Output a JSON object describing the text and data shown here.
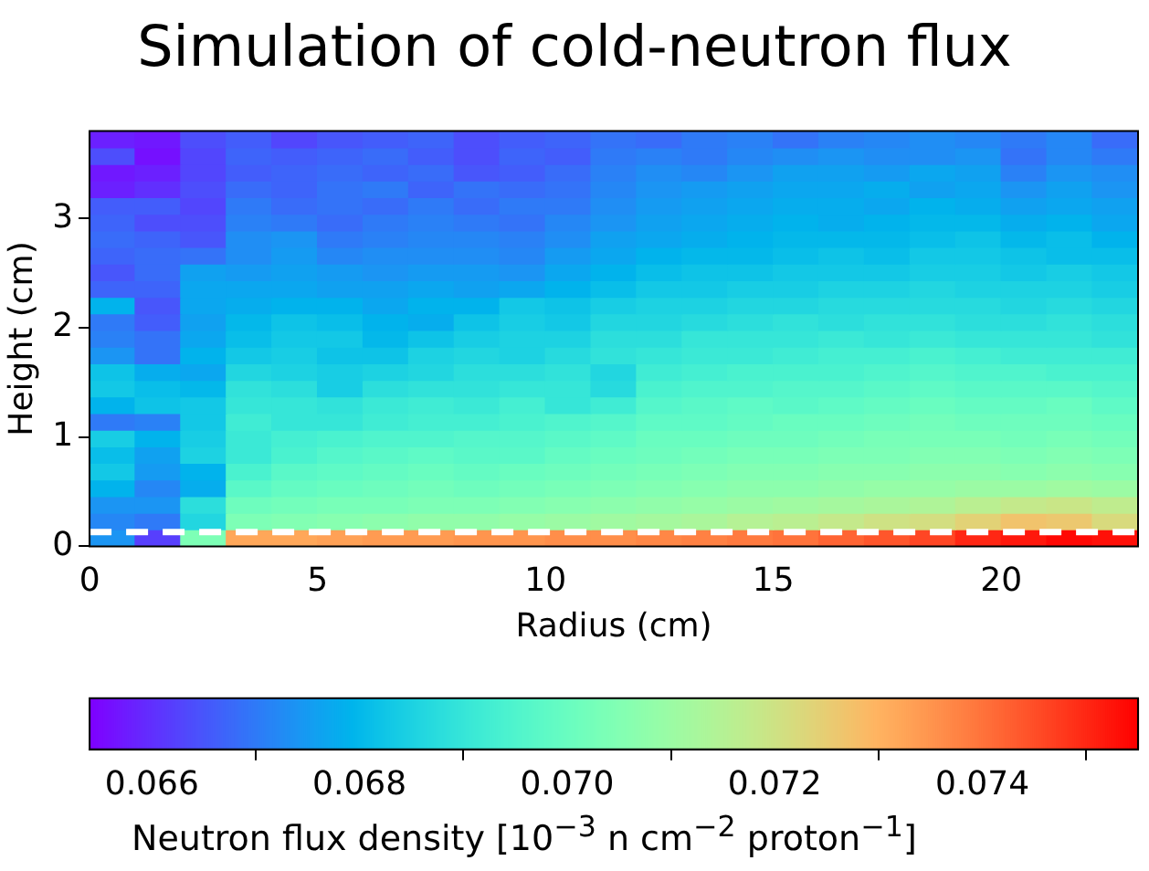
{
  "chart_data": {
    "type": "heatmap",
    "title": "Simulation of cold-neutron flux",
    "xlabel": "Radius (cm)",
    "ylabel": "Height (cm)",
    "clabel": "Neutron flux density [10$^{−3}$ n cm$^{−2}$ proton$^{−1}$]",
    "x": [
      0.5,
      1.5,
      2.5,
      3.5,
      4.5,
      5.5,
      6.5,
      7.5,
      8.5,
      9.5,
      10.5,
      11.5,
      12.5,
      13.5,
      14.5,
      15.5,
      16.5,
      17.5,
      18.5,
      19.5,
      20.5,
      21.5,
      22.5
    ],
    "y": [
      3.724,
      3.572,
      3.42,
      3.268,
      3.116,
      2.964,
      2.812,
      2.66,
      2.508,
      2.356,
      2.204,
      2.052,
      1.9,
      1.748,
      1.596,
      1.444,
      1.292,
      1.14,
      0.988,
      0.836,
      0.684,
      0.532,
      0.38,
      0.228,
      0.076
    ],
    "xlim": [
      0,
      23
    ],
    "xticks": [
      0,
      5,
      10,
      15,
      20
    ],
    "ylim": [
      0,
      3.8
    ],
    "yticks": [
      0,
      1,
      2,
      3
    ],
    "clim": [
      0.0654,
      0.0755
    ],
    "cticks": [
      0.066,
      0.068,
      {
        "value": 0.07,
        "label": "0.070"
      },
      0.072,
      0.074
    ],
    "ref_lines": [
      {
        "axis": "y",
        "value": 0.13,
        "color": "#ffffff",
        "line_style": "dashed"
      }
    ],
    "cells": [
      [
        0.0658,
        0.0657,
        0.0664,
        0.0666,
        0.0663,
        0.0665,
        0.0666,
        0.0667,
        0.0664,
        0.0666,
        0.0667,
        0.0669,
        0.0668,
        0.067,
        0.0671,
        0.0669,
        0.0671,
        0.0672,
        0.0673,
        0.0672,
        0.067,
        0.0672,
        0.0668
      ],
      [
        0.0664,
        0.0656,
        0.0663,
        0.0667,
        0.0666,
        0.0667,
        0.0668,
        0.0666,
        0.0664,
        0.0667,
        0.0666,
        0.067,
        0.0671,
        0.067,
        0.0672,
        0.0673,
        0.0674,
        0.0673,
        0.0673,
        0.0674,
        0.0669,
        0.0672,
        0.067
      ],
      [
        0.0657,
        0.0658,
        0.0663,
        0.0666,
        0.0667,
        0.0668,
        0.0667,
        0.0668,
        0.0665,
        0.0666,
        0.0668,
        0.0671,
        0.0673,
        0.0672,
        0.0674,
        0.0676,
        0.0676,
        0.0675,
        0.0677,
        0.0676,
        0.0671,
        0.0674,
        0.0673
      ],
      [
        0.0658,
        0.066,
        0.0664,
        0.0668,
        0.0667,
        0.0669,
        0.067,
        0.0667,
        0.0669,
        0.0668,
        0.0669,
        0.0672,
        0.0674,
        0.0675,
        0.0676,
        0.0677,
        0.0677,
        0.0678,
        0.0676,
        0.0677,
        0.0674,
        0.0676,
        0.0674
      ],
      [
        0.0666,
        0.0666,
        0.0663,
        0.067,
        0.0668,
        0.0669,
        0.0668,
        0.067,
        0.0668,
        0.067,
        0.067,
        0.0673,
        0.0675,
        0.0676,
        0.0677,
        0.0678,
        0.0678,
        0.0677,
        0.0679,
        0.0678,
        0.0676,
        0.0677,
        0.0676
      ],
      [
        0.0667,
        0.0664,
        0.0664,
        0.0671,
        0.067,
        0.0668,
        0.067,
        0.0671,
        0.067,
        0.0669,
        0.0672,
        0.0674,
        0.0676,
        0.0677,
        0.0678,
        0.0679,
        0.0678,
        0.0679,
        0.068,
        0.068,
        0.0678,
        0.0679,
        0.0677
      ],
      [
        0.0668,
        0.0667,
        0.0665,
        0.0673,
        0.0674,
        0.067,
        0.0671,
        0.0672,
        0.0672,
        0.0671,
        0.0673,
        0.0676,
        0.0677,
        0.0678,
        0.0679,
        0.068,
        0.068,
        0.068,
        0.0681,
        0.0682,
        0.068,
        0.0681,
        0.0679
      ],
      [
        0.0667,
        0.0668,
        0.0669,
        0.0673,
        0.0675,
        0.0672,
        0.0673,
        0.0673,
        0.0673,
        0.0672,
        0.0675,
        0.0677,
        0.0679,
        0.068,
        0.068,
        0.0681,
        0.0682,
        0.0681,
        0.0683,
        0.0683,
        0.0682,
        0.0681,
        0.0681
      ],
      [
        0.0665,
        0.0668,
        0.0676,
        0.0675,
        0.0676,
        0.0675,
        0.0674,
        0.0675,
        0.0675,
        0.0674,
        0.0677,
        0.0679,
        0.0681,
        0.0682,
        0.0682,
        0.0683,
        0.0683,
        0.0683,
        0.0684,
        0.0684,
        0.0683,
        0.0684,
        0.0683
      ],
      [
        0.0667,
        0.0667,
        0.0677,
        0.0677,
        0.0677,
        0.0676,
        0.0676,
        0.0677,
        0.0676,
        0.0677,
        0.0679,
        0.0681,
        0.0683,
        0.0683,
        0.0684,
        0.0684,
        0.0685,
        0.0685,
        0.0686,
        0.0685,
        0.0685,
        0.0685,
        0.0684
      ],
      [
        0.0679,
        0.0665,
        0.0677,
        0.0678,
        0.0679,
        0.0679,
        0.0677,
        0.0679,
        0.0679,
        0.0683,
        0.0682,
        0.0684,
        0.0685,
        0.0685,
        0.0686,
        0.0686,
        0.0687,
        0.0687,
        0.0687,
        0.0687,
        0.0686,
        0.0687,
        0.0686
      ],
      [
        0.067,
        0.0666,
        0.0676,
        0.068,
        0.0682,
        0.0681,
        0.0679,
        0.0678,
        0.0682,
        0.0684,
        0.0683,
        0.0686,
        0.0686,
        0.0687,
        0.0688,
        0.0689,
        0.0688,
        0.0689,
        0.0689,
        0.0688,
        0.0688,
        0.0689,
        0.0688
      ],
      [
        0.0671,
        0.0669,
        0.0677,
        0.0681,
        0.0683,
        0.0683,
        0.068,
        0.0682,
        0.0684,
        0.0685,
        0.0685,
        0.0688,
        0.0688,
        0.069,
        0.069,
        0.069,
        0.0691,
        0.069,
        0.0691,
        0.069,
        0.069,
        0.069,
        0.0689
      ],
      [
        0.0674,
        0.0669,
        0.0679,
        0.0683,
        0.0684,
        0.0682,
        0.0682,
        0.0685,
        0.0686,
        0.0685,
        0.0687,
        0.0689,
        0.069,
        0.0691,
        0.0691,
        0.0692,
        0.0693,
        0.0693,
        0.0694,
        0.0693,
        0.0692,
        0.0692,
        0.0692
      ],
      [
        0.0682,
        0.0678,
        0.0677,
        0.0686,
        0.0685,
        0.0684,
        0.0685,
        0.0686,
        0.0688,
        0.0688,
        0.0689,
        0.0686,
        0.0692,
        0.0693,
        0.0694,
        0.0694,
        0.0694,
        0.0695,
        0.0696,
        0.0695,
        0.0695,
        0.0694,
        0.0694
      ],
      [
        0.0683,
        0.0681,
        0.068,
        0.0689,
        0.0688,
        0.0684,
        0.0688,
        0.0689,
        0.0689,
        0.069,
        0.069,
        0.0687,
        0.0694,
        0.0695,
        0.0695,
        0.0696,
        0.0696,
        0.0697,
        0.0698,
        0.0697,
        0.0697,
        0.0697,
        0.0696
      ],
      [
        0.0679,
        0.0682,
        0.0683,
        0.069,
        0.069,
        0.0689,
        0.0691,
        0.0692,
        0.0691,
        0.0693,
        0.069,
        0.0692,
        0.0696,
        0.0697,
        0.0698,
        0.0697,
        0.0698,
        0.0699,
        0.07,
        0.0699,
        0.0699,
        0.07,
        0.0698
      ],
      [
        0.067,
        0.0671,
        0.0683,
        0.0692,
        0.069,
        0.069,
        0.0692,
        0.0693,
        0.0693,
        0.0694,
        0.0695,
        0.0696,
        0.0698,
        0.0698,
        0.0699,
        0.07,
        0.07,
        0.0701,
        0.0702,
        0.0701,
        0.0701,
        0.0701,
        0.07
      ],
      [
        0.0684,
        0.0679,
        0.0684,
        0.0691,
        0.0693,
        0.0694,
        0.0695,
        0.0695,
        0.0696,
        0.0696,
        0.0697,
        0.0698,
        0.07,
        0.07,
        0.0701,
        0.0701,
        0.0702,
        0.0703,
        0.0703,
        0.0703,
        0.0702,
        0.0703,
        0.0702
      ],
      [
        0.0681,
        0.0676,
        0.0685,
        0.0691,
        0.0694,
        0.0696,
        0.0697,
        0.0698,
        0.0697,
        0.0697,
        0.0699,
        0.07,
        0.0701,
        0.0702,
        0.0703,
        0.0703,
        0.0704,
        0.0704,
        0.0705,
        0.0705,
        0.0704,
        0.0705,
        0.0704
      ],
      [
        0.0683,
        0.0675,
        0.0679,
        0.0694,
        0.0697,
        0.0698,
        0.0699,
        0.07,
        0.0699,
        0.07,
        0.0701,
        0.0702,
        0.0703,
        0.0704,
        0.0705,
        0.0705,
        0.0706,
        0.0706,
        0.0707,
        0.0707,
        0.0706,
        0.0707,
        0.0706
      ],
      [
        0.0679,
        0.0672,
        0.0678,
        0.0697,
        0.0699,
        0.07,
        0.0701,
        0.0702,
        0.0701,
        0.0702,
        0.0703,
        0.0704,
        0.0705,
        0.0706,
        0.0707,
        0.0707,
        0.0708,
        0.0709,
        0.0709,
        0.071,
        0.071,
        0.0711,
        0.071
      ],
      [
        0.0674,
        0.0674,
        0.0688,
        0.0701,
        0.0702,
        0.0703,
        0.0703,
        0.0704,
        0.0704,
        0.0705,
        0.0706,
        0.0707,
        0.0708,
        0.0709,
        0.071,
        0.0711,
        0.0712,
        0.0713,
        0.0714,
        0.0716,
        0.0718,
        0.0719,
        0.0717
      ],
      [
        0.0672,
        0.067,
        0.0686,
        0.0704,
        0.0705,
        0.0706,
        0.0707,
        0.0708,
        0.0708,
        0.0709,
        0.071,
        0.0711,
        0.0712,
        0.0713,
        0.0715,
        0.0716,
        0.0718,
        0.072,
        0.0721,
        0.0724,
        0.0727,
        0.0726,
        0.0722
      ],
      [
        0.0674,
        0.0662,
        0.0704,
        0.0732,
        0.0732,
        0.0733,
        0.0734,
        0.0734,
        0.0735,
        0.0735,
        0.0736,
        0.0736,
        0.0737,
        0.0738,
        0.0739,
        0.074,
        0.0742,
        0.0744,
        0.0746,
        0.075,
        0.0752,
        0.0754,
        0.0753
      ]
    ]
  }
}
